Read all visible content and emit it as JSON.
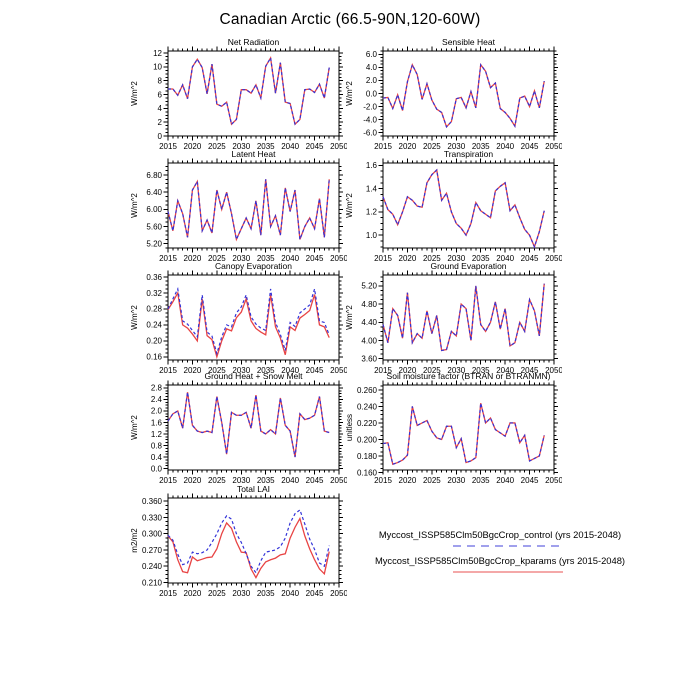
{
  "title": "Canadian Arctic (66.5-90N,120-60W)",
  "legend": {
    "items": [
      {
        "key": "control",
        "label": "Myccost_ISSP585Clm50BgcCrop_control (yrs 2015-2048)",
        "color": "#3333d8",
        "dash": true
      },
      {
        "key": "kparams",
        "label": "Myccost_ISSP585Clm50BgcCrop_kparams (yrs 2015-2048)",
        "color": "#e84444",
        "dash": false
      }
    ]
  },
  "chart_common": {
    "x_start": 2015,
    "x_end": 2048,
    "xlim": [
      2015,
      2050
    ],
    "xticks": [
      2015,
      2020,
      2025,
      2030,
      2035,
      2040,
      2045,
      2050
    ],
    "x_minor_step": 1,
    "grid": false
  },
  "chart_data": [
    {
      "id": "net-radiation",
      "type": "line",
      "title": "Net Radiation",
      "ylabel": "W/m^2",
      "ylim": [
        0,
        12.3
      ],
      "yticks": [
        0,
        2,
        4,
        6,
        8,
        10,
        12
      ],
      "ytick_labels": [
        "0",
        "2",
        "4",
        "6",
        "8",
        "10",
        "12"
      ],
      "series": [
        {
          "name": "control",
          "values": [
            6.8,
            6.8,
            5.9,
            7.4,
            5.4,
            10.0,
            11.1,
            9.9,
            6.1,
            10.4,
            4.6,
            4.3,
            4.9,
            1.7,
            2.4,
            6.7,
            6.7,
            6.2,
            7.4,
            5.5,
            10.1,
            11.3,
            6.2,
            10.6,
            4.9,
            4.7,
            1.7,
            2.4,
            6.7,
            6.8,
            6.3,
            7.5,
            5.5,
            9.9
          ]
        },
        {
          "name": "kparams",
          "values": [
            6.8,
            6.8,
            5.9,
            7.4,
            5.4,
            10.0,
            11.1,
            9.9,
            6.1,
            10.4,
            4.6,
            4.3,
            4.9,
            1.7,
            2.4,
            6.7,
            6.7,
            6.2,
            7.4,
            5.5,
            10.1,
            11.3,
            6.2,
            10.6,
            4.9,
            4.7,
            1.7,
            2.4,
            6.7,
            6.8,
            6.3,
            7.5,
            5.5,
            9.9
          ]
        }
      ]
    },
    {
      "id": "sensible-heat",
      "type": "line",
      "title": "Sensible Heat",
      "ylabel": "W/m^2",
      "ylim": [
        -6.5,
        6.5
      ],
      "yticks": [
        -6,
        -4,
        -2,
        0,
        2,
        4,
        6
      ],
      "ytick_labels": [
        "-6.0",
        "-4.0",
        "-2.0",
        "0.0",
        "2.0",
        "4.0",
        "6.0"
      ],
      "series": [
        {
          "name": "control",
          "values": [
            -0.7,
            -0.6,
            -2.3,
            -0.2,
            -2.6,
            1.8,
            4.4,
            2.9,
            -0.9,
            1.5,
            -1.0,
            -2.4,
            -2.9,
            -5.1,
            -4.3,
            -0.8,
            -0.6,
            -2.2,
            0.3,
            -2.2,
            4.4,
            3.4,
            0.9,
            1.6,
            -2.3,
            -2.9,
            -3.8,
            -5.0,
            -0.7,
            -0.4,
            -2.0,
            0.4,
            -2.2,
            1.9
          ]
        },
        {
          "name": "kparams",
          "values": [
            -0.7,
            -0.6,
            -2.3,
            -0.2,
            -2.6,
            1.8,
            4.4,
            2.9,
            -0.9,
            1.5,
            -1.0,
            -2.4,
            -2.9,
            -5.1,
            -4.3,
            -0.8,
            -0.6,
            -2.2,
            0.3,
            -2.2,
            4.4,
            3.4,
            0.9,
            1.6,
            -2.3,
            -2.9,
            -3.8,
            -5.0,
            -0.7,
            -0.4,
            -2.0,
            0.4,
            -2.2,
            1.9
          ]
        }
      ]
    },
    {
      "id": "latent-heat",
      "type": "line",
      "title": "Latent Heat",
      "ylabel": "W/m^2",
      "ylim": [
        5.1,
        7.08
      ],
      "yticks": [
        5.2,
        5.6,
        6.0,
        6.4,
        6.8
      ],
      "ytick_labels": [
        "5.20",
        "5.60",
        "6.00",
        "6.40",
        "6.80"
      ],
      "series": [
        {
          "name": "control",
          "values": [
            5.95,
            5.5,
            6.2,
            5.9,
            5.35,
            6.45,
            6.65,
            5.5,
            5.75,
            5.45,
            6.45,
            6.0,
            6.4,
            5.9,
            5.3,
            5.55,
            5.8,
            5.55,
            6.2,
            5.4,
            6.7,
            5.6,
            5.85,
            5.4,
            6.5,
            5.95,
            6.45,
            5.3,
            5.6,
            5.8,
            5.55,
            6.25,
            5.35,
            6.7
          ]
        },
        {
          "name": "kparams",
          "values": [
            5.95,
            5.5,
            6.2,
            5.9,
            5.35,
            6.45,
            6.65,
            5.5,
            5.75,
            5.45,
            6.45,
            6.0,
            6.4,
            5.9,
            5.3,
            5.55,
            5.8,
            5.55,
            6.2,
            5.4,
            6.7,
            5.6,
            5.85,
            5.4,
            6.5,
            5.95,
            6.45,
            5.3,
            5.6,
            5.8,
            5.55,
            6.25,
            5.35,
            6.7
          ]
        }
      ]
    },
    {
      "id": "transpiration",
      "type": "line",
      "title": "Transpiration",
      "ylabel": "W/m^2",
      "ylim": [
        0.89,
        1.62
      ],
      "yticks": [
        1.0,
        1.2,
        1.4,
        1.6
      ],
      "ytick_labels": [
        "1.0",
        "1.2",
        "1.4",
        "1.6"
      ],
      "series": [
        {
          "name": "control",
          "values": [
            1.33,
            1.22,
            1.18,
            1.09,
            1.2,
            1.33,
            1.3,
            1.25,
            1.24,
            1.45,
            1.52,
            1.56,
            1.3,
            1.36,
            1.2,
            1.1,
            1.06,
            1.0,
            1.1,
            1.28,
            1.21,
            1.18,
            1.15,
            1.38,
            1.42,
            1.45,
            1.21,
            1.26,
            1.15,
            1.05,
            1.0,
            0.9,
            1.03,
            1.21
          ]
        },
        {
          "name": "kparams",
          "values": [
            1.33,
            1.22,
            1.18,
            1.09,
            1.2,
            1.33,
            1.3,
            1.25,
            1.24,
            1.45,
            1.52,
            1.56,
            1.3,
            1.36,
            1.2,
            1.1,
            1.06,
            1.0,
            1.1,
            1.28,
            1.21,
            1.18,
            1.15,
            1.38,
            1.42,
            1.45,
            1.21,
            1.26,
            1.15,
            1.05,
            1.0,
            0.9,
            1.03,
            1.21
          ]
        }
      ]
    },
    {
      "id": "canopy-evaporation",
      "type": "line",
      "title": "Canopy Evaporation",
      "ylabel": "W/m^2",
      "ylim": [
        0.152,
        0.365
      ],
      "yticks": [
        0.16,
        0.2,
        0.24,
        0.28,
        0.32,
        0.36
      ],
      "ytick_labels": [
        "0.16",
        "0.20",
        "0.24",
        "0.28",
        "0.32",
        "0.36"
      ],
      "series": [
        {
          "name": "control",
          "values": [
            0.28,
            0.305,
            0.33,
            0.25,
            0.242,
            0.226,
            0.21,
            0.315,
            0.222,
            0.212,
            0.168,
            0.21,
            0.24,
            0.235,
            0.27,
            0.285,
            0.315,
            0.26,
            0.242,
            0.232,
            0.226,
            0.33,
            0.246,
            0.216,
            0.176,
            0.246,
            0.236,
            0.27,
            0.28,
            0.29,
            0.33,
            0.25,
            0.246,
            0.215
          ]
        },
        {
          "name": "kparams",
          "values": [
            0.278,
            0.298,
            0.32,
            0.24,
            0.232,
            0.217,
            0.2,
            0.305,
            0.213,
            0.203,
            0.16,
            0.2,
            0.23,
            0.225,
            0.258,
            0.272,
            0.305,
            0.25,
            0.231,
            0.222,
            0.215,
            0.316,
            0.235,
            0.207,
            0.165,
            0.235,
            0.226,
            0.257,
            0.266,
            0.276,
            0.316,
            0.24,
            0.235,
            0.208
          ]
        }
      ]
    },
    {
      "id": "ground-evaporation",
      "type": "line",
      "title": "Ground Evaporation",
      "ylabel": "W/m^2",
      "ylim": [
        3.57,
        5.44
      ],
      "yticks": [
        3.6,
        4.0,
        4.4,
        4.8,
        5.2
      ],
      "ytick_labels": [
        "3.60",
        "4.00",
        "4.40",
        "4.80",
        "5.20"
      ],
      "series": [
        {
          "name": "control",
          "values": [
            4.35,
            3.95,
            4.7,
            4.55,
            4.05,
            5.05,
            3.95,
            4.15,
            4.05,
            4.65,
            4.15,
            4.55,
            3.78,
            3.8,
            4.2,
            4.1,
            4.8,
            4.7,
            4.0,
            5.2,
            4.35,
            4.2,
            4.4,
            4.85,
            4.25,
            4.7,
            3.88,
            3.95,
            4.4,
            4.2,
            4.9,
            4.65,
            4.1,
            5.25
          ]
        },
        {
          "name": "kparams",
          "values": [
            4.35,
            3.95,
            4.7,
            4.55,
            4.05,
            5.05,
            3.95,
            4.15,
            4.05,
            4.65,
            4.15,
            4.55,
            3.78,
            3.8,
            4.2,
            4.1,
            4.8,
            4.7,
            4.0,
            5.2,
            4.35,
            4.2,
            4.4,
            4.85,
            4.25,
            4.7,
            3.88,
            3.95,
            4.4,
            4.2,
            4.9,
            4.65,
            4.1,
            5.25
          ]
        }
      ]
    },
    {
      "id": "ground-heat-snow-melt",
      "type": "line",
      "title": "Ground Heat + Snow Melt",
      "ylabel": "W/m^2",
      "ylim": [
        -0.05,
        2.9
      ],
      "yticks": [
        0,
        0.4,
        0.8,
        1.2,
        1.6,
        2.0,
        2.4,
        2.8
      ],
      "ytick_labels": [
        "0.0",
        "0.4",
        "0.8",
        "1.2",
        "1.6",
        "2.0",
        "2.4",
        "2.8"
      ],
      "series": [
        {
          "name": "control",
          "values": [
            1.65,
            1.9,
            2.0,
            1.4,
            2.65,
            1.5,
            1.3,
            1.25,
            1.3,
            1.25,
            2.5,
            1.6,
            0.5,
            1.95,
            1.85,
            1.85,
            1.95,
            1.4,
            2.55,
            1.3,
            1.2,
            1.35,
            1.2,
            2.45,
            1.5,
            1.3,
            0.4,
            1.9,
            1.7,
            1.75,
            1.85,
            2.5,
            1.3,
            1.25
          ]
        },
        {
          "name": "kparams",
          "values": [
            1.65,
            1.9,
            2.0,
            1.4,
            2.65,
            1.5,
            1.3,
            1.25,
            1.3,
            1.25,
            2.5,
            1.6,
            0.5,
            1.95,
            1.85,
            1.85,
            1.95,
            1.4,
            2.55,
            1.3,
            1.2,
            1.35,
            1.2,
            2.45,
            1.5,
            1.3,
            0.4,
            1.9,
            1.7,
            1.75,
            1.85,
            2.5,
            1.3,
            1.25
          ]
        }
      ]
    },
    {
      "id": "soil-moisture-factor",
      "type": "line",
      "title": "Soil moisture factor (BTRAN or BTRANMN)",
      "ylabel": "unitless",
      "ylim": [
        0.163,
        0.266
      ],
      "yticks": [
        0.16,
        0.18,
        0.2,
        0.22,
        0.24,
        0.26
      ],
      "ytick_labels": [
        "0.160",
        "0.180",
        "0.200",
        "0.220",
        "0.240",
        "0.260"
      ],
      "series": [
        {
          "name": "control",
          "values": [
            0.195,
            0.196,
            0.17,
            0.172,
            0.175,
            0.181,
            0.24,
            0.217,
            0.22,
            0.223,
            0.21,
            0.202,
            0.2,
            0.216,
            0.216,
            0.19,
            0.201,
            0.172,
            0.174,
            0.178,
            0.244,
            0.22,
            0.226,
            0.212,
            0.208,
            0.204,
            0.22,
            0.22,
            0.196,
            0.205,
            0.174,
            0.177,
            0.18,
            0.205
          ]
        },
        {
          "name": "kparams",
          "values": [
            0.195,
            0.196,
            0.17,
            0.172,
            0.175,
            0.181,
            0.24,
            0.217,
            0.22,
            0.223,
            0.21,
            0.202,
            0.2,
            0.216,
            0.216,
            0.19,
            0.201,
            0.172,
            0.174,
            0.178,
            0.244,
            0.22,
            0.226,
            0.212,
            0.208,
            0.204,
            0.22,
            0.22,
            0.196,
            0.205,
            0.174,
            0.177,
            0.18,
            0.205
          ]
        }
      ]
    },
    {
      "id": "total-lai",
      "type": "line",
      "title": "Total LAI",
      "ylabel": "m2/m2",
      "ylim": [
        0.209,
        0.366
      ],
      "yticks": [
        0.21,
        0.24,
        0.27,
        0.3,
        0.33,
        0.36
      ],
      "ytick_labels": [
        "0.210",
        "0.240",
        "0.270",
        "0.300",
        "0.330",
        "0.360"
      ],
      "series": [
        {
          "name": "control",
          "values": [
            0.297,
            0.288,
            0.262,
            0.243,
            0.246,
            0.266,
            0.263,
            0.265,
            0.27,
            0.284,
            0.3,
            0.32,
            0.333,
            0.327,
            0.3,
            0.284,
            0.263,
            0.24,
            0.228,
            0.25,
            0.266,
            0.268,
            0.27,
            0.276,
            0.292,
            0.32,
            0.337,
            0.344,
            0.318,
            0.29,
            0.271,
            0.246,
            0.24,
            0.278
          ]
        },
        {
          "name": "kparams",
          "values": [
            0.296,
            0.285,
            0.252,
            0.23,
            0.228,
            0.257,
            0.25,
            0.253,
            0.256,
            0.257,
            0.272,
            0.3,
            0.32,
            0.31,
            0.285,
            0.266,
            0.265,
            0.235,
            0.219,
            0.236,
            0.248,
            0.252,
            0.255,
            0.261,
            0.263,
            0.292,
            0.312,
            0.328,
            0.296,
            0.272,
            0.252,
            0.235,
            0.226,
            0.267
          ]
        }
      ]
    }
  ]
}
